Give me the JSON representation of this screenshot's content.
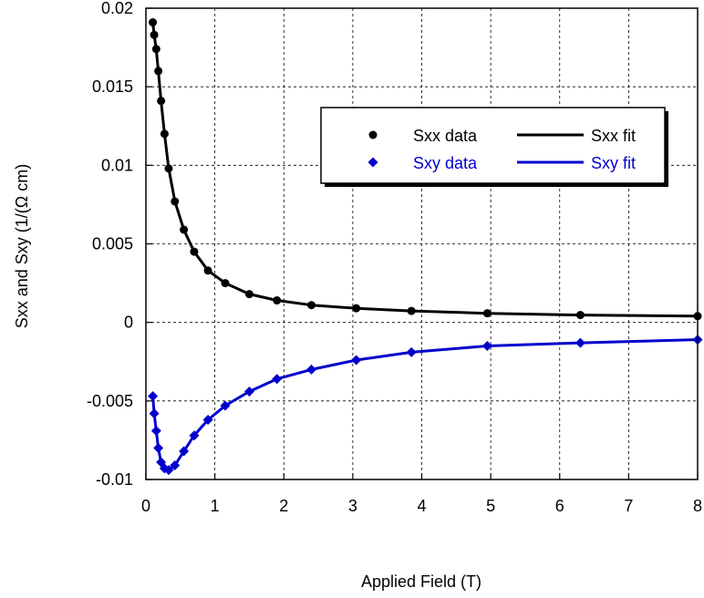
{
  "chart_data": {
    "type": "line",
    "title": "",
    "xlabel": "Applied Field (T)",
    "ylabel": "Sxx and Sxy (1/(Ω cm)",
    "xlim": [
      0,
      8
    ],
    "ylim": [
      -0.01,
      0.02
    ],
    "xticks": [
      0,
      1,
      2,
      3,
      4,
      5,
      6,
      7,
      8
    ],
    "xtick_labels": [
      "0",
      "1",
      "2",
      "3",
      "4",
      "5",
      "6",
      "7",
      "8"
    ],
    "yticks": [
      -0.01,
      -0.005,
      0,
      0.005,
      0.01,
      0.015,
      0.02
    ],
    "ytick_labels": [
      "-0.01",
      "-0.005",
      "0",
      "0.005",
      "0.01",
      "0.015",
      "0.02"
    ],
    "grid": true,
    "legend_position": "upper-right",
    "series": [
      {
        "name": "Sxx data",
        "kind": "scatter",
        "marker": "circle",
        "color": "#000000",
        "x": [
          0.1,
          0.12,
          0.15,
          0.18,
          0.22,
          0.27,
          0.33,
          0.42,
          0.55,
          0.7,
          0.9,
          1.15,
          1.5,
          1.9,
          2.4,
          3.05,
          3.85,
          4.95,
          6.3,
          8.0
        ],
        "y": [
          0.0191,
          0.0183,
          0.0174,
          0.016,
          0.0141,
          0.012,
          0.0098,
          0.0077,
          0.0059,
          0.0045,
          0.0033,
          0.0025,
          0.0018,
          0.0014,
          0.0011,
          0.0009,
          0.00073,
          0.00058,
          0.00047,
          0.0004
        ]
      },
      {
        "name": "Sxx fit",
        "kind": "line",
        "color": "#000000",
        "x": [
          0.1,
          0.12,
          0.15,
          0.18,
          0.22,
          0.27,
          0.33,
          0.42,
          0.55,
          0.7,
          0.9,
          1.15,
          1.5,
          1.9,
          2.4,
          3.05,
          3.85,
          4.95,
          6.3,
          8.0
        ],
        "y": [
          0.0191,
          0.0183,
          0.0174,
          0.016,
          0.0141,
          0.012,
          0.0098,
          0.0077,
          0.0059,
          0.0045,
          0.0033,
          0.0025,
          0.0018,
          0.0014,
          0.0011,
          0.0009,
          0.00073,
          0.00058,
          0.00047,
          0.0004
        ]
      },
      {
        "name": "Sxy data",
        "kind": "scatter",
        "marker": "diamond",
        "color": "#0000cc",
        "x": [
          0.1,
          0.12,
          0.15,
          0.18,
          0.22,
          0.27,
          0.33,
          0.42,
          0.55,
          0.7,
          0.9,
          1.15,
          1.5,
          1.9,
          2.4,
          3.05,
          3.85,
          4.95,
          6.3,
          8.0
        ],
        "y": [
          -0.0047,
          -0.0058,
          -0.0069,
          -0.008,
          -0.0089,
          -0.0093,
          -0.0094,
          -0.0091,
          -0.0082,
          -0.0072,
          -0.0062,
          -0.0053,
          -0.0044,
          -0.0036,
          -0.003,
          -0.0024,
          -0.0019,
          -0.0015,
          -0.0013,
          -0.0011
        ]
      },
      {
        "name": "Sxy fit",
        "kind": "line",
        "color": "#0000cc",
        "x": [
          0.1,
          0.12,
          0.15,
          0.18,
          0.22,
          0.27,
          0.33,
          0.42,
          0.55,
          0.7,
          0.9,
          1.15,
          1.5,
          1.9,
          2.4,
          3.05,
          3.85,
          4.95,
          6.3,
          8.0
        ],
        "y": [
          -0.0047,
          -0.0058,
          -0.0069,
          -0.008,
          -0.0089,
          -0.0093,
          -0.0094,
          -0.0091,
          -0.0082,
          -0.0072,
          -0.0062,
          -0.0053,
          -0.0044,
          -0.0036,
          -0.003,
          -0.0024,
          -0.0019,
          -0.0015,
          -0.0013,
          -0.0011
        ]
      }
    ]
  }
}
